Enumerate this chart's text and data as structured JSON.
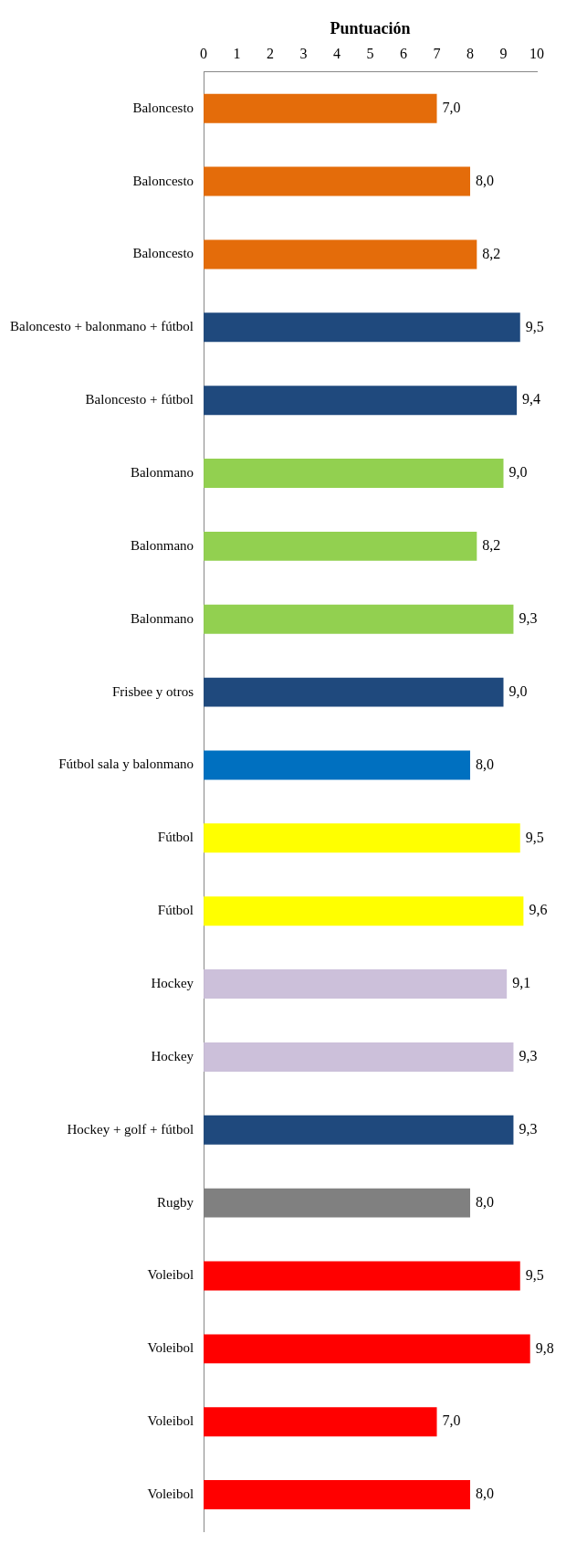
{
  "chart_data": {
    "type": "bar",
    "orientation": "horizontal",
    "xlabel": "Puntuación",
    "categories": [
      "Baloncesto",
      "Baloncesto",
      "Baloncesto",
      "Baloncesto + balonmano + fútbol",
      "Baloncesto + fútbol",
      "Balonmano",
      "Balonmano",
      "Balonmano",
      "Frisbee y otros",
      "Fútbol sala y balonmano",
      "Fútbol",
      "Fútbol",
      "Hockey",
      "Hockey",
      "Hockey + golf + fútbol",
      "Rugby",
      "Voleibol",
      "Voleibol",
      "Voleibol",
      "Voleibol"
    ],
    "values": [
      7.0,
      8.0,
      8.2,
      9.5,
      9.4,
      9.0,
      8.2,
      9.3,
      9.0,
      8.0,
      9.5,
      9.6,
      9.1,
      9.3,
      9.3,
      8.0,
      9.5,
      9.8,
      7.0,
      8.0
    ],
    "value_labels": [
      "7,0",
      "8,0",
      "8,2",
      "9,5",
      "9,4",
      "9,0",
      "8,2",
      "9,3",
      "9,0",
      "8,0",
      "9,5",
      "9,6",
      "9,1",
      "9,3",
      "9,3",
      "8,0",
      "9,5",
      "9,8",
      "7,0",
      "8,0"
    ],
    "colors": [
      "#e46c0a",
      "#e46c0a",
      "#e46c0a",
      "#1f497d",
      "#1f497d",
      "#92d050",
      "#92d050",
      "#92d050",
      "#1f497d",
      "#0070c0",
      "#ffff00",
      "#ffff00",
      "#ccc0da",
      "#ccc0da",
      "#1f497d",
      "#808080",
      "#ff0000",
      "#ff0000",
      "#ff0000",
      "#ff0000"
    ],
    "xlim": [
      0,
      10
    ],
    "xticks": [
      0,
      1,
      2,
      3,
      4,
      5,
      6,
      7,
      8,
      9,
      10
    ],
    "grid": false,
    "legend": false
  }
}
